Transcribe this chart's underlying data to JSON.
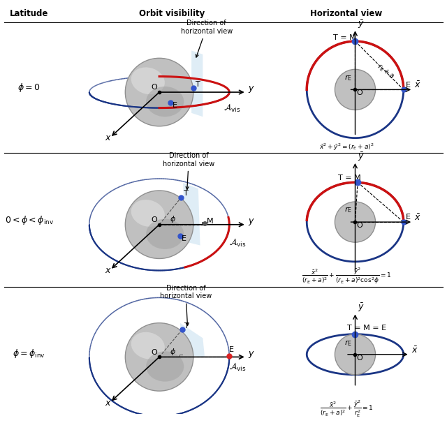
{
  "col_headers": [
    "Latitude",
    "Orbit visibility",
    "Horizontal view"
  ],
  "row_labels": [
    "$\\phi = 0$",
    "$0 < \\phi < \\phi_{\\rm inv}$",
    "$\\phi = \\phi_{\\rm inv}$"
  ],
  "equations": [
    "$\\bar{x}^2 + \\bar{y}^2 = (r_{\\rm E} + a)^2$",
    "$\\dfrac{\\bar{x}^2}{(r_{\\rm E}+a)^2} + \\dfrac{\\bar{y}^2}{(r_{\\rm E}+a)^2\\cos^2\\!\\phi} = 1$",
    "$\\dfrac{\\bar{x}^2}{(r_{\\rm E}+a)^2} + \\dfrac{\\bar{y}^2}{r_{\\rm E}^2} = 1$"
  ],
  "bg_color": "#ffffff",
  "blue": "#1a3585",
  "red": "#cc1111",
  "gray_face": "#b8b8b8",
  "gray_edge": "#888888",
  "gray_dark": "#707070",
  "beam_color": "#c5dff0",
  "dot_blue": "#3355cc",
  "dot_red": "#dd2222"
}
